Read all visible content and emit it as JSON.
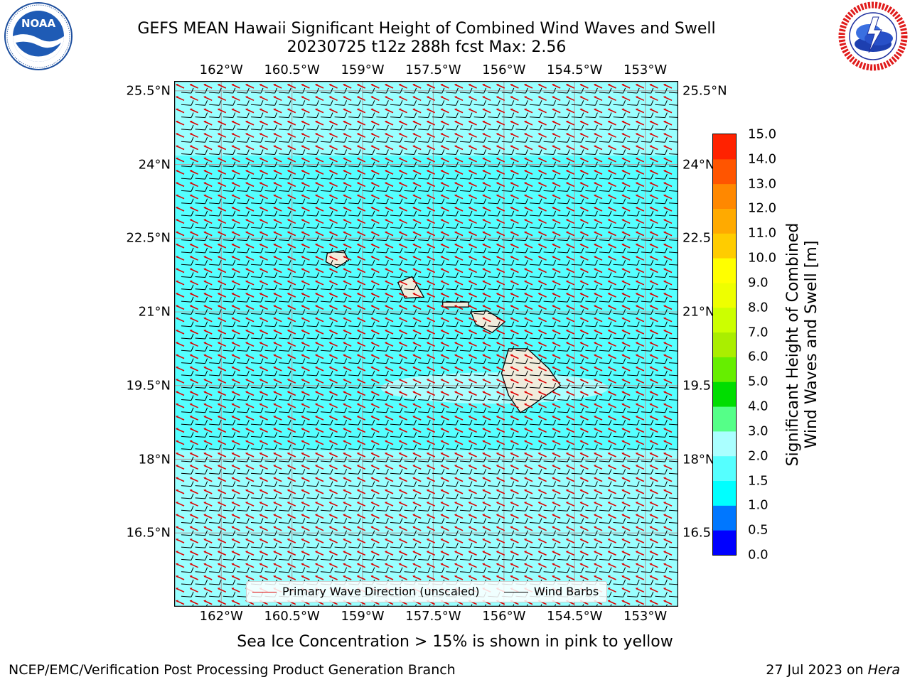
{
  "header": {
    "title_line1": "GEFS MEAN Hawaii Significant Height of Combined Wind Waves and Swell",
    "title_line2": "20230725 t12z 288h fcst   Max: 2.56"
  },
  "logos": {
    "left": {
      "name": "NOAA",
      "text": "NOAA",
      "ring_text": "NATIONAL OCEANIC AND ATMOSPHERIC ADMINISTRATION · U.S. DEPARTMENT OF COMMERCE"
    },
    "right": {
      "name": "National Weather Service",
      "ring_text": "NATIONAL WEATHER SERVICE"
    }
  },
  "map": {
    "lon_ticks": [
      "162°W",
      "160.5°W",
      "159°W",
      "157.5°W",
      "156°W",
      "154.5°W",
      "153°W"
    ],
    "lat_ticks": [
      "25.5°N",
      "24°N",
      "22.5°N",
      "21°N",
      "19.5°N",
      "18°N",
      "16.5°N"
    ],
    "lon_values": [
      -162,
      -160.5,
      -159,
      -157.5,
      -156,
      -154.5,
      -153
    ],
    "lat_values": [
      25.5,
      24,
      22.5,
      21,
      19.5,
      18,
      16.5
    ],
    "extent": {
      "lon_min": -163.0,
      "lon_max": -152.3,
      "lat_min": 15.0,
      "lat_max": 25.7
    },
    "ocean_color": "#55ffff",
    "light_band_color": "#aaffff",
    "land_color": "#f0ecdc",
    "wave_arrow_color": "#e00000",
    "barb_color": "#000000"
  },
  "legend": {
    "wave_label": "Primary Wave Direction (unscaled)",
    "barb_label": "Wind Barbs"
  },
  "colorbar": {
    "label_line1": "Significant Height of Combined",
    "label_line2": "Wind Waves and Swell [m]",
    "ticks": [
      "15.0",
      "14.0",
      "13.0",
      "12.0",
      "11.0",
      "10.0",
      "9.0",
      "8.0",
      "7.0",
      "6.0",
      "5.0",
      "4.0",
      "3.0",
      "2.0",
      "1.5",
      "1.0",
      "0.5",
      "0.0"
    ],
    "levels": [
      0.0,
      0.5,
      1.0,
      1.5,
      2.0,
      3.0,
      4.0,
      5.0,
      6.0,
      7.0,
      8.0,
      9.0,
      10.0,
      11.0,
      12.0,
      13.0,
      14.0,
      15.0
    ],
    "colors": [
      "#0000ff",
      "#0077ff",
      "#00ffff",
      "#55ffff",
      "#aaffff",
      "#55ff88",
      "#00dd00",
      "#66ee00",
      "#aaee00",
      "#ccff00",
      "#eeff00",
      "#ffff00",
      "#ffcc00",
      "#ffaa00",
      "#ff8800",
      "#ff5500",
      "#ff2200"
    ]
  },
  "footer": {
    "sea_ice_note": "Sea Ice Concentration > 15% is shown in pink to yellow",
    "branch": "NCEP/EMC/Verification Post Processing Product Generation Branch",
    "date_prefix": "27 Jul 2023 on ",
    "machine": "Hera"
  }
}
